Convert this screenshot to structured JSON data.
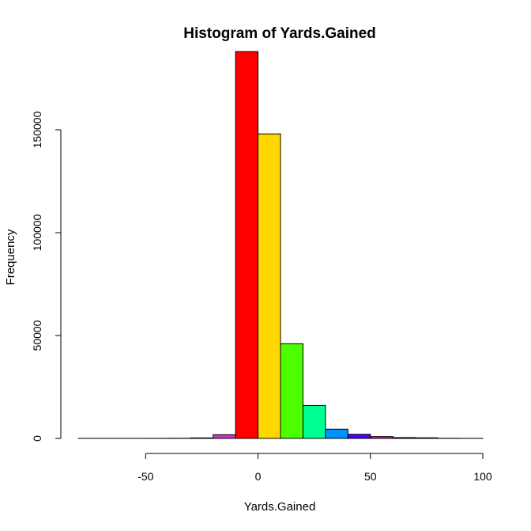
{
  "chart_data": {
    "type": "bar",
    "title": "Histogram of Yards.Gained",
    "xlabel": "Yards.Gained",
    "ylabel": "Frequency",
    "xlim": [
      -80,
      100
    ],
    "ylim": [
      0,
      190000
    ],
    "x_ticks": [
      -50,
      0,
      50,
      100
    ],
    "y_ticks": [
      0,
      50000,
      100000,
      150000
    ],
    "bin_width": 10,
    "bins": [
      {
        "start": -80,
        "end": -70,
        "value": 20,
        "color": "#ff0000"
      },
      {
        "start": -70,
        "end": -60,
        "value": 20,
        "color": "#ff0000"
      },
      {
        "start": -60,
        "end": -50,
        "value": 30,
        "color": "#ffd700"
      },
      {
        "start": -50,
        "end": -40,
        "value": 40,
        "color": "#4cff00"
      },
      {
        "start": -40,
        "end": -30,
        "value": 80,
        "color": "#00ff92"
      },
      {
        "start": -30,
        "end": -20,
        "value": 250,
        "color": "#0092ff"
      },
      {
        "start": -20,
        "end": -10,
        "value": 1800,
        "color": "#cc33cc"
      },
      {
        "start": -10,
        "end": 0,
        "value": 188000,
        "color": "#ff0000"
      },
      {
        "start": 0,
        "end": 10,
        "value": 148000,
        "color": "#ffd700"
      },
      {
        "start": 10,
        "end": 20,
        "value": 46000,
        "color": "#4cff00"
      },
      {
        "start": 20,
        "end": 30,
        "value": 16000,
        "color": "#00ff92"
      },
      {
        "start": 30,
        "end": 40,
        "value": 4500,
        "color": "#0092ff"
      },
      {
        "start": 40,
        "end": 50,
        "value": 2000,
        "color": "#4c00ff"
      },
      {
        "start": 50,
        "end": 60,
        "value": 900,
        "color": "#ff00db"
      },
      {
        "start": 60,
        "end": 70,
        "value": 400,
        "color": "#ff0000"
      },
      {
        "start": 70,
        "end": 80,
        "value": 300,
        "color": "#ffd700"
      },
      {
        "start": 80,
        "end": 90,
        "value": 60,
        "color": "#4cff00"
      },
      {
        "start": 90,
        "end": 100,
        "value": 30,
        "color": "#00ff92"
      }
    ]
  }
}
